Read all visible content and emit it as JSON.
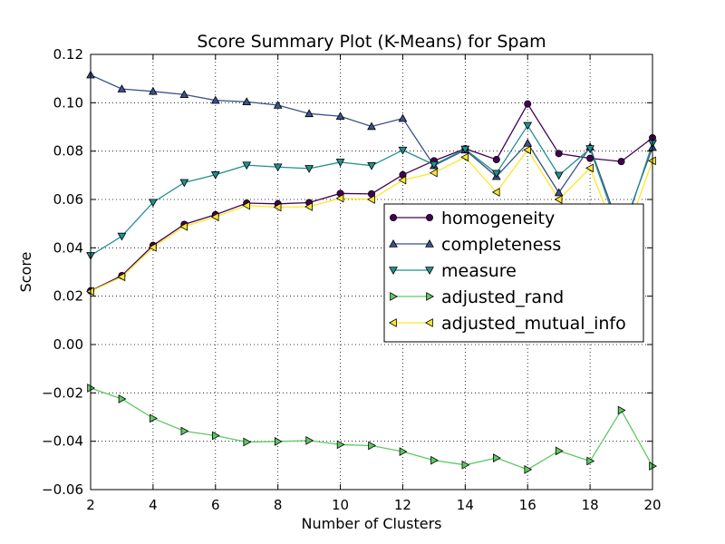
{
  "chart_data": {
    "type": "line",
    "title": "Score Summary Plot (K-Means) for Spam",
    "xlabel": "Number of Clusters",
    "ylabel": "Score",
    "xlim": [
      2,
      20
    ],
    "ylim": [
      -0.06,
      0.12
    ],
    "grid": true,
    "legend_position": "center-right",
    "x_ticks": [
      2,
      4,
      6,
      8,
      10,
      12,
      14,
      16,
      18,
      20
    ],
    "y_ticks": [
      -0.06,
      -0.04,
      -0.02,
      0.0,
      0.02,
      0.04,
      0.06,
      0.08,
      0.1,
      0.12
    ],
    "x_tick_labels": [
      "2",
      "4",
      "6",
      "8",
      "10",
      "12",
      "14",
      "16",
      "18",
      "20"
    ],
    "y_tick_labels": [
      "−0.06",
      "−0.04",
      "−0.02",
      "0.00",
      "0.02",
      "0.04",
      "0.06",
      "0.08",
      "0.10",
      "0.12"
    ],
    "x": [
      2,
      3,
      4,
      5,
      6,
      7,
      8,
      9,
      10,
      11,
      12,
      13,
      14,
      15,
      16,
      17,
      18,
      19,
      20
    ],
    "series": [
      {
        "name": "homogeneity",
        "color": "#440154",
        "marker": "circle",
        "values": [
          0.0222,
          0.0285,
          0.041,
          0.0497,
          0.0537,
          0.0585,
          0.0582,
          0.0587,
          0.0625,
          0.0623,
          0.0702,
          0.076,
          0.081,
          0.0765,
          0.0995,
          0.079,
          0.077,
          0.0757,
          0.0855
        ]
      },
      {
        "name": "completeness",
        "color": "#3b528b",
        "marker": "triangle-up",
        "values": [
          0.1115,
          0.1057,
          0.1047,
          0.1034,
          0.101,
          0.1004,
          0.099,
          0.0955,
          0.0944,
          0.0902,
          0.0935,
          0.074,
          0.0805,
          0.0695,
          0.0833,
          0.0628,
          0.0817,
          0.046,
          0.0815
        ]
      },
      {
        "name": "measure",
        "color": "#21918c",
        "marker": "triangle-down",
        "values": [
          0.0368,
          0.0448,
          0.0588,
          0.067,
          0.0702,
          0.0742,
          0.0734,
          0.0728,
          0.0754,
          0.074,
          0.0804,
          0.0744,
          0.0808,
          0.0708,
          0.0906,
          0.07,
          0.081,
          0.044,
          0.0832
        ]
      },
      {
        "name": "adjusted_rand",
        "color": "#5ec962",
        "marker": "triangle-right",
        "values": [
          -0.018,
          -0.0225,
          -0.0305,
          -0.0358,
          -0.0377,
          -0.0403,
          -0.0401,
          -0.0397,
          -0.0414,
          -0.0418,
          -0.0443,
          -0.0479,
          -0.0498,
          -0.0469,
          -0.0517,
          -0.044,
          -0.0482,
          -0.0272,
          -0.0503
        ]
      },
      {
        "name": "adjusted_mutual_info",
        "color": "#fde725",
        "marker": "triangle-left",
        "values": [
          0.022,
          0.028,
          0.0402,
          0.0488,
          0.0528,
          0.0575,
          0.0568,
          0.057,
          0.0605,
          0.06,
          0.068,
          0.071,
          0.0775,
          0.063,
          0.0805,
          0.06,
          0.073,
          0.04,
          0.076
        ]
      }
    ]
  }
}
